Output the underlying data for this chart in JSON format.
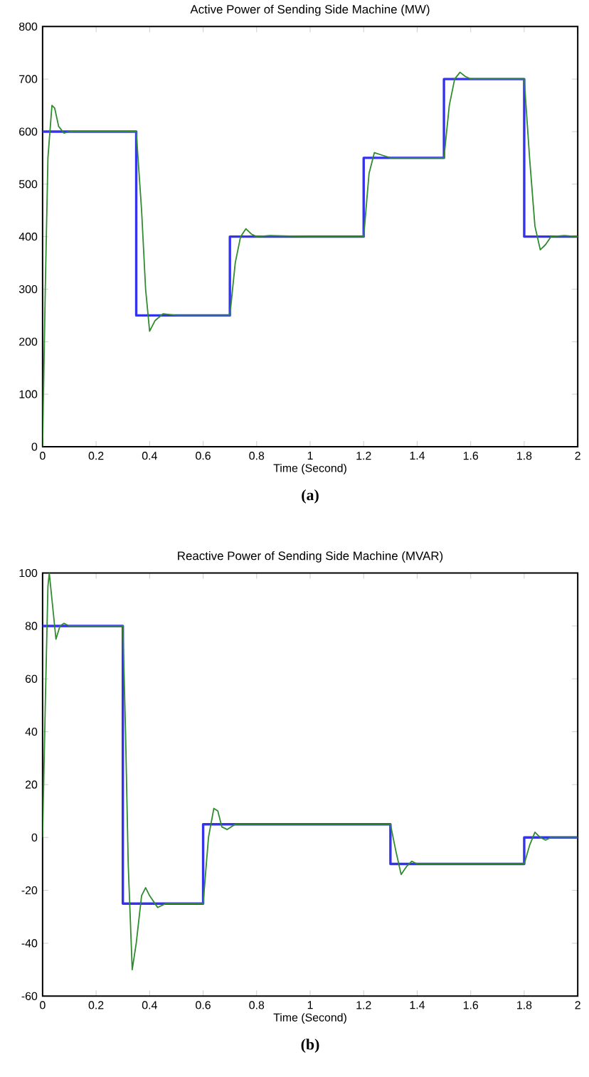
{
  "chart_data": [
    {
      "type": "line",
      "title": "Active Power of Sending Side Machine (MW)",
      "xlabel": "Time (Second)",
      "xlim": [
        0,
        2
      ],
      "ylim": [
        0,
        800
      ],
      "xticks": [
        0,
        0.2,
        0.4,
        0.6,
        0.8,
        1,
        1.2,
        1.4,
        1.6,
        1.8,
        2
      ],
      "yticks": [
        0,
        100,
        200,
        300,
        400,
        500,
        600,
        700,
        800
      ],
      "annotations": [
        "(a)"
      ],
      "series": [
        {
          "color": "#3333ee",
          "x": [
            0,
            0.35,
            0.35,
            0.7,
            0.7,
            1.2,
            1.2,
            1.5,
            1.5,
            1.8,
            1.8,
            2
          ],
          "values": [
            600,
            600,
            250,
            250,
            400,
            400,
            550,
            550,
            700,
            700,
            400,
            400
          ]
        },
        {
          "color": "#2e8b2e",
          "x": [
            0,
            0.01,
            0.02,
            0.035,
            0.045,
            0.06,
            0.08,
            0.1,
            0.35,
            0.37,
            0.385,
            0.4,
            0.42,
            0.45,
            0.5,
            0.7,
            0.72,
            0.74,
            0.76,
            0.78,
            0.8,
            0.85,
            1.0,
            1.2,
            1.22,
            1.24,
            1.27,
            1.3,
            1.5,
            1.52,
            1.54,
            1.56,
            1.58,
            1.6,
            1.8,
            1.82,
            1.84,
            1.86,
            1.88,
            1.9,
            1.95,
            2
          ],
          "values": [
            0,
            300,
            550,
            650,
            645,
            610,
            597,
            600,
            600,
            450,
            300,
            220,
            240,
            253,
            250,
            250,
            350,
            400,
            415,
            405,
            400,
            402,
            400,
            400,
            520,
            560,
            555,
            550,
            550,
            650,
            700,
            713,
            705,
            700,
            700,
            550,
            420,
            375,
            385,
            400,
            402,
            400
          ]
        }
      ]
    },
    {
      "type": "line",
      "title": "Reactive Power of Sending Side Machine (MVAR)",
      "xlabel": "Time (Second)",
      "xlim": [
        0,
        2
      ],
      "ylim": [
        -60,
        100
      ],
      "xticks": [
        0,
        0.2,
        0.4,
        0.6,
        0.8,
        1,
        1.2,
        1.4,
        1.6,
        1.8,
        2
      ],
      "yticks": [
        -60,
        -40,
        -20,
        0,
        20,
        40,
        60,
        80,
        100
      ],
      "annotations": [
        "(b)"
      ],
      "series": [
        {
          "color": "#3333ee",
          "x": [
            0,
            0.3,
            0.3,
            0.6,
            0.6,
            1.3,
            1.3,
            1.8,
            1.8,
            2
          ],
          "values": [
            80,
            80,
            -25,
            -25,
            5,
            5,
            -10,
            -10,
            0,
            0
          ]
        },
        {
          "color": "#2e8b2e",
          "x": [
            0,
            0.01,
            0.02,
            0.025,
            0.035,
            0.05,
            0.065,
            0.08,
            0.1,
            0.3,
            0.31,
            0.32,
            0.335,
            0.35,
            0.37,
            0.385,
            0.4,
            0.43,
            0.46,
            0.6,
            0.62,
            0.64,
            0.655,
            0.67,
            0.69,
            0.72,
            0.75,
            1.3,
            1.32,
            1.34,
            1.36,
            1.38,
            1.4,
            1.8,
            1.82,
            1.84,
            1.86,
            1.88,
            1.9,
            2
          ],
          "values": [
            0,
            50,
            95,
            100,
            90,
            75,
            80,
            81,
            80,
            80,
            40,
            -10,
            -50,
            -40,
            -22,
            -19,
            -22,
            -26.5,
            -25,
            -25,
            0,
            11,
            10,
            4,
            3,
            5,
            5,
            5,
            -5,
            -14,
            -11,
            -9,
            -10,
            -10,
            -3,
            2,
            0,
            -1,
            0,
            0
          ]
        }
      ]
    }
  ]
}
